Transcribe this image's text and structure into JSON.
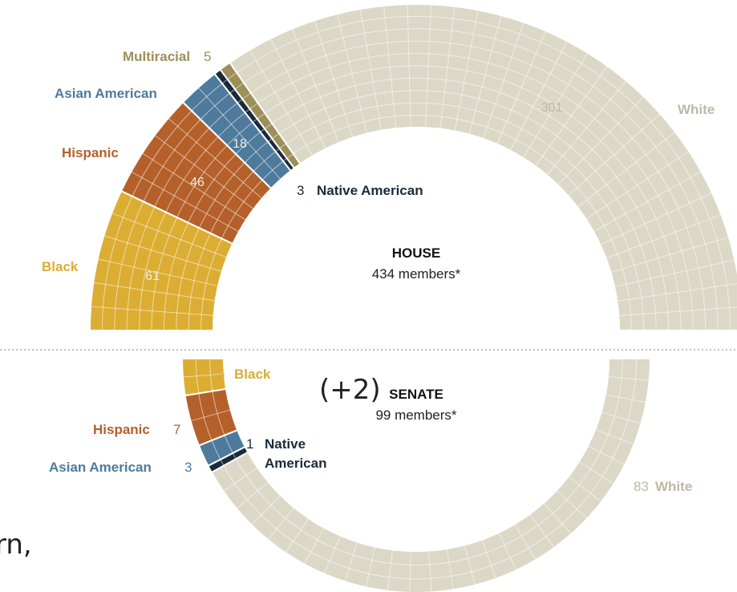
{
  "colors": {
    "white": "#dcd8c7",
    "multiracial": "#9c9058",
    "asian_american": "#4e7a9c",
    "hispanic": "#b5602a",
    "black": "#dbad32",
    "native_american": "#1b2a3a",
    "white_label": "#bdb9a8",
    "divider": "#aaaaaa"
  },
  "fragments": {
    "left_top": "(+2)",
    "left_bottom": "rn,"
  },
  "chart_data": [
    {
      "type": "semicircle-grid",
      "title": "HOUSE",
      "subtitle": "434 members*",
      "segments": [
        {
          "key": "black",
          "label": "Black",
          "value": 61,
          "value_text": "61"
        },
        {
          "key": "hispanic",
          "label": "Hispanic",
          "value": 46,
          "value_text": "46"
        },
        {
          "key": "asian_american",
          "label": "Asian American",
          "value": 18,
          "value_text": "18"
        },
        {
          "key": "native_american",
          "label": "Native American",
          "value": 3,
          "value_text": "3"
        },
        {
          "key": "multiracial",
          "label": "Multiracial",
          "value": 5,
          "value_text": "5"
        },
        {
          "key": "white",
          "label": "White",
          "value": 301,
          "value_text": "301"
        }
      ]
    },
    {
      "type": "semicircle-grid",
      "title": "SENATE",
      "subtitle": "99 members*",
      "segments": [
        {
          "key": "black",
          "label": "Black",
          "value": 5,
          "value_text": "5"
        },
        {
          "key": "hispanic",
          "label": "Hispanic",
          "value": 7,
          "value_text": "7"
        },
        {
          "key": "asian_american",
          "label": "Asian American",
          "value": 3,
          "value_text": "3"
        },
        {
          "key": "native_american",
          "label": "Native\nAmerican",
          "value": 1,
          "value_text": "1"
        },
        {
          "key": "white",
          "label": "White",
          "value": 83,
          "value_text": "83"
        }
      ]
    }
  ]
}
